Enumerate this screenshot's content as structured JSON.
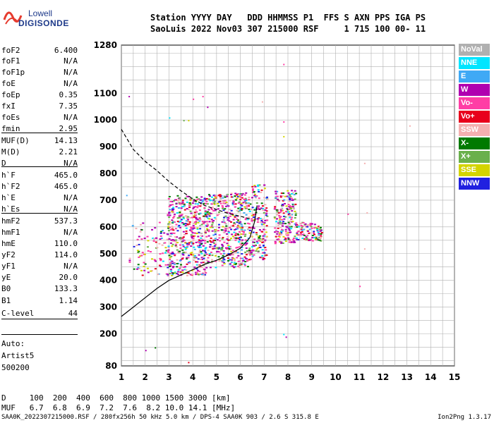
{
  "logo": {
    "line1": "Lowell",
    "line2": "DIGISONDE"
  },
  "header": {
    "line1": "Station YYYY DAY   DDD HHMMSS P1  FFS S AXN PPS IGA PS",
    "line2": "SaoLuis 2022 Nov03 307 215000 RSF     1 715 100 00- 11"
  },
  "params": [
    {
      "name": "foF2",
      "value": "6.400"
    },
    {
      "name": "foF1",
      "value": "N/A"
    },
    {
      "name": "foF1p",
      "value": "N/A"
    },
    {
      "name": "foE",
      "value": "N/A"
    },
    {
      "name": "foEp",
      "value": "0.35"
    },
    {
      "name": "fxI",
      "value": "7.35"
    },
    {
      "name": "foEs",
      "value": "N/A"
    },
    {
      "name": "fmin",
      "value": "2.95"
    },
    {
      "name": "MUF(D)",
      "value": "14.13"
    },
    {
      "name": "M(D)",
      "value": "2.21"
    },
    {
      "name": "D",
      "value": "N/A"
    },
    {
      "name": "h`F",
      "value": "465.0"
    },
    {
      "name": "h`F2",
      "value": "465.0"
    },
    {
      "name": "h`E",
      "value": "N/A"
    },
    {
      "name": "h`Es",
      "value": "N/A"
    },
    {
      "name": "hmF2",
      "value": "537.3"
    },
    {
      "name": "hmF1",
      "value": "N/A"
    },
    {
      "name": "hmE",
      "value": "110.0"
    },
    {
      "name": "yF2",
      "value": "114.0"
    },
    {
      "name": "yF1",
      "value": "N/A"
    },
    {
      "name": "yE",
      "value": "20.0"
    },
    {
      "name": "B0",
      "value": "133.3"
    },
    {
      "name": "B1",
      "value": "1.14"
    },
    {
      "name": "C-level",
      "value": "44"
    }
  ],
  "auto": [
    "Auto:",
    "Artist5",
    "500200"
  ],
  "legend": [
    {
      "label": "NoVal",
      "color": "#b0b0b0"
    },
    {
      "label": "NNE",
      "color": "#00e5ff"
    },
    {
      "label": "E",
      "color": "#3fa9f5"
    },
    {
      "label": "W",
      "color": "#b000b0"
    },
    {
      "label": "Vo-",
      "color": "#ff3ea5"
    },
    {
      "label": "Vo+",
      "color": "#e8001c"
    },
    {
      "label": "SSW",
      "color": "#f4b0b0"
    },
    {
      "label": "X-",
      "color": "#007a00"
    },
    {
      "label": "X+",
      "color": "#6ab04c"
    },
    {
      "label": "SSE",
      "color": "#d4d400"
    },
    {
      "label": "NNW",
      "color": "#2020e0"
    }
  ],
  "bottom": {
    "d_line": "D     100  200  400  600  800 1000 1500 3000 [km]",
    "muf_line": "MUF   6.7  6.8  6.9  7.2  7.6  8.2 10.0 14.1 [MHz]"
  },
  "footer": {
    "left": "SAA0K_2022307215000.RSF / 280fx256h 50 kHz 5.0 km / DPS-4 SAA0K 903 / 2.6 S 315.8 E",
    "right": "Ion2Png 1.3.17"
  },
  "chart_data": {
    "type": "scatter",
    "xlim": [
      1,
      15
    ],
    "ylim": [
      80,
      1280
    ],
    "x_ticks": [
      1,
      2,
      3,
      4,
      5,
      6,
      7,
      8,
      9,
      10,
      11,
      12,
      13,
      14,
      15
    ],
    "y_ticks": [
      80,
      200,
      300,
      400,
      500,
      600,
      700,
      800,
      900,
      1000,
      1100,
      1280
    ],
    "grid": true,
    "curves": {
      "solid": [
        [
          1,
          265
        ],
        [
          1.5,
          300
        ],
        [
          2,
          335
        ],
        [
          2.5,
          370
        ],
        [
          3,
          400
        ],
        [
          3.5,
          420
        ],
        [
          4,
          440
        ],
        [
          4.5,
          460
        ],
        [
          5,
          475
        ],
        [
          5.5,
          495
        ],
        [
          6,
          520
        ],
        [
          6.4,
          560
        ],
        [
          6.6,
          620
        ],
        [
          6.7,
          680
        ]
      ],
      "dashed": [
        [
          1,
          965
        ],
        [
          1.5,
          890
        ],
        [
          2,
          845
        ],
        [
          2.5,
          810
        ],
        [
          3,
          770
        ],
        [
          3.5,
          735
        ],
        [
          4,
          705
        ],
        [
          4.5,
          680
        ],
        [
          5,
          665
        ],
        [
          5.5,
          650
        ],
        [
          6,
          640
        ],
        [
          6.4,
          630
        ]
      ]
    },
    "clusters": [
      {
        "x": [
          1.3,
          2.9
        ],
        "y": [
          420,
          620
        ],
        "n": 90
      },
      {
        "x": [
          2.9,
          4.6
        ],
        "y": [
          420,
          720
        ],
        "n": 520
      },
      {
        "x": [
          4.6,
          6.4
        ],
        "y": [
          450,
          730
        ],
        "n": 480
      },
      {
        "x": [
          6.4,
          7.1
        ],
        "y": [
          480,
          760
        ],
        "n": 160
      },
      {
        "x": [
          7.4,
          8.3
        ],
        "y": [
          540,
          740
        ],
        "n": 200
      },
      {
        "x": [
          8.3,
          9.4
        ],
        "y": [
          550,
          620
        ],
        "n": 110
      }
    ],
    "outliers": [
      [
        1.3,
        1090
      ],
      [
        1.2,
        720
      ],
      [
        2.0,
        140
      ],
      [
        2.4,
        150
      ],
      [
        3.0,
        1010
      ],
      [
        3.6,
        1000
      ],
      [
        3.8,
        1000
      ],
      [
        4.4,
        1090
      ],
      [
        4.6,
        1050
      ],
      [
        4.0,
        1080
      ],
      [
        6.9,
        1070
      ],
      [
        7.8,
        1210
      ],
      [
        7.8,
        995
      ],
      [
        7.8,
        940
      ],
      [
        7.8,
        200
      ],
      [
        7.9,
        190
      ],
      [
        13.1,
        980
      ],
      [
        11.2,
        840
      ],
      [
        11.0,
        380
      ],
      [
        11.2,
        520
      ],
      [
        10.5,
        650
      ],
      [
        11.3,
        655
      ],
      [
        3.8,
        95
      ]
    ]
  }
}
